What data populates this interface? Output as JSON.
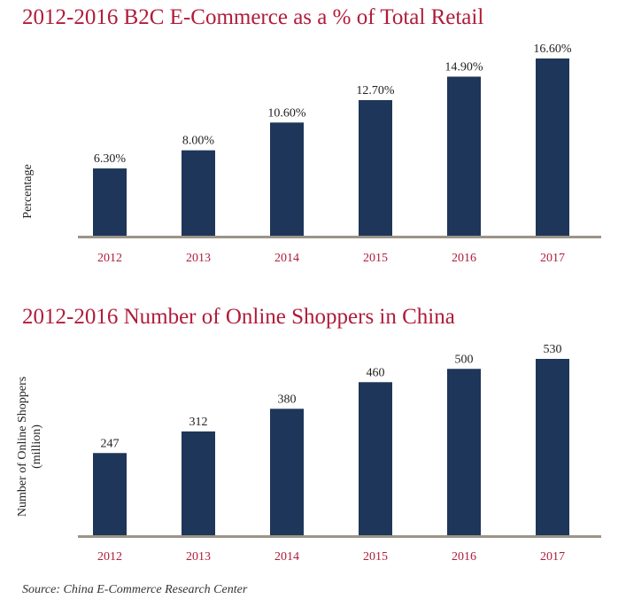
{
  "colors": {
    "bar": "#1e3659",
    "title": "#b01c3a",
    "tick": "#b01c3a",
    "baseline": "#9c9488",
    "text": "#222222"
  },
  "chart_data": [
    {
      "type": "bar",
      "title": "2012-2016 B2C E-Commerce as a % of Total Retail",
      "ylabel": "Percentage",
      "xlabel": "",
      "categories": [
        "2012",
        "2013",
        "2014",
        "2015",
        "2016",
        "2017"
      ],
      "values": [
        6.3,
        8.0,
        10.6,
        12.7,
        14.9,
        16.6
      ],
      "data_labels": [
        "6.30%",
        "8.00%",
        "10.60%",
        "12.70%",
        "14.90%",
        "16.60%"
      ],
      "ylim": [
        0,
        16.6
      ],
      "grid": false,
      "legend": "none"
    },
    {
      "type": "bar",
      "title": "2012-2016 Number of Online Shoppers in China",
      "ylabel": [
        "Number of Online Shoppers",
        "(million)"
      ],
      "xlabel": "",
      "categories": [
        "2012",
        "2013",
        "2014",
        "2015",
        "2016",
        "2017"
      ],
      "values": [
        247,
        312,
        380,
        460,
        500,
        530
      ],
      "data_labels": [
        "247",
        "312",
        "380",
        "460",
        "500",
        "530"
      ],
      "ylim": [
        0,
        530
      ],
      "grid": false,
      "legend": "none"
    }
  ],
  "source": "Source: China E-Commerce Research Center"
}
